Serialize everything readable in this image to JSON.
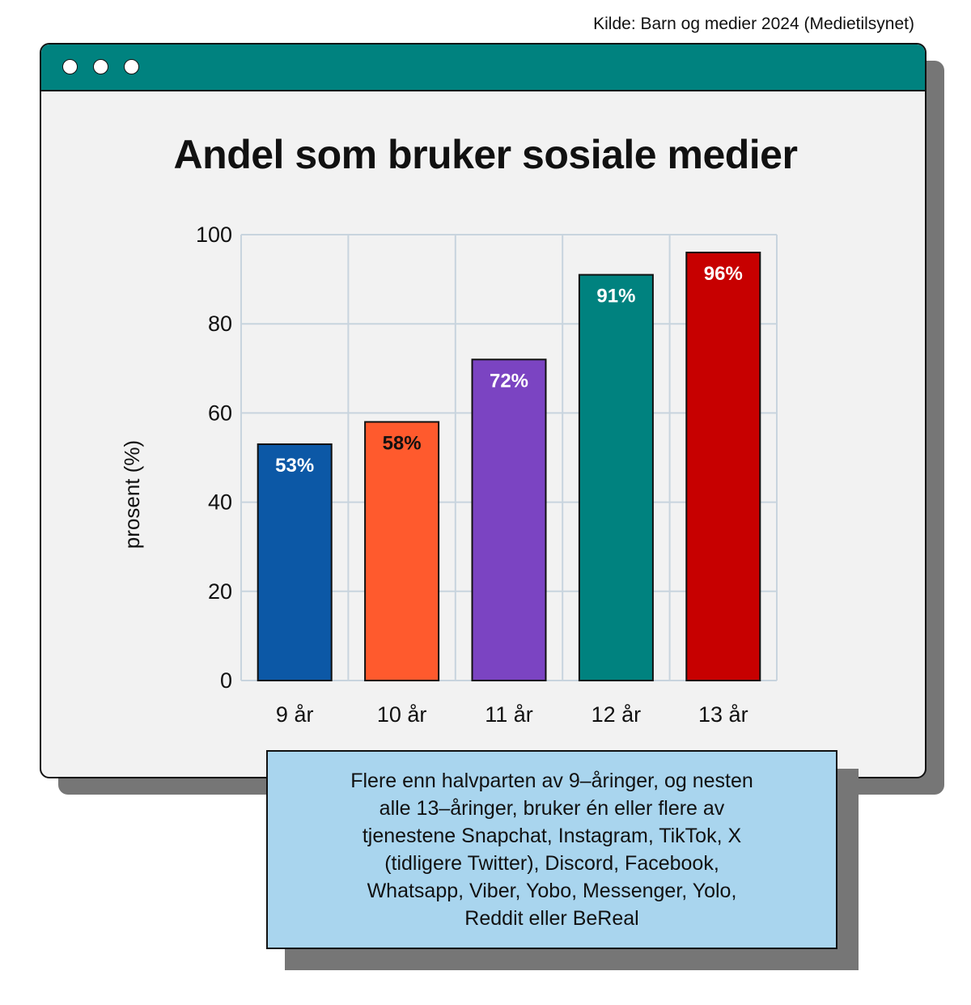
{
  "source": "Kilde: Barn og medier 2024 (Medietilsynet)",
  "window": {
    "dots": 3,
    "titlebar_color": "#00827f"
  },
  "note": {
    "lines": [
      "Flere enn halvparten av 9–åringer, og nesten",
      "alle 13–åringer, bruker én eller flere av",
      "tjenestene Snapchat, Instagram, TikTok, X",
      "(tidligere Twitter), Discord, Facebook,",
      "Whatsapp, Viber, Yobo, Messenger, Yolo,",
      "Reddit eller BeReal"
    ]
  },
  "chart_data": {
    "type": "bar",
    "title": "Andel som bruker sosiale medier",
    "ylabel": "prosent (%)",
    "xlabel": "",
    "ylim": [
      0,
      100
    ],
    "yticks": [
      0,
      20,
      40,
      60,
      80,
      100
    ],
    "grid": true,
    "categories": [
      "9 år",
      "10 år",
      "11 år",
      "12 år",
      "13 år"
    ],
    "values": [
      53,
      58,
      72,
      91,
      96
    ],
    "value_labels": [
      "53%",
      "58%",
      "72%",
      "91%",
      "96%"
    ],
    "colors": [
      "#0c58a6",
      "#ff5a2d",
      "#7b44c2",
      "#00827f",
      "#c70000"
    ],
    "label_colors": [
      "#ffffff",
      "#111111",
      "#ffffff",
      "#ffffff",
      "#ffffff"
    ]
  }
}
